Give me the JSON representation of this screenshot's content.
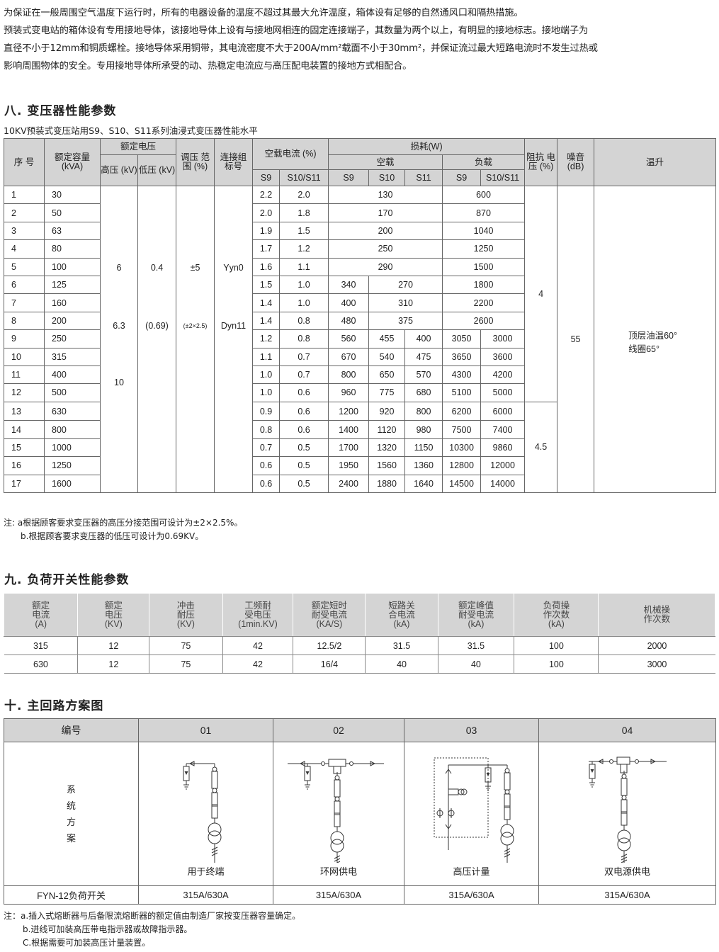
{
  "intro_lines": [
    "为保证在一般周围空气温度下运行时，所有的电器设备的温度不超过其最大允许温度，箱体设有足够的自然通风口和隔热措施。",
    "预装式变电站的箱体设有专用接地导体，该接地导体上设有与接地网相连的固定连接端子，其数量为两个以上，有明显的接地标志。接地端子为",
    "直径不小于12mm和铜质螺栓。接地导体采用铜带，其电流密度不大于200A/mm²载面不小于30mm²，并保证流过最大短路电流时不发生过热或",
    "影响周围物体的安全。专用接地导体所承受的动、热稳定电流应与高压配电装置的接地方式相配合。"
  ],
  "section8": {
    "title": "八. 变压器性能参数",
    "subtitle": "10KV预装式变压站用S9、S10、S11系列油浸式变压器性能水平",
    "headers": {
      "seq": "序 号",
      "capacity": "额定容量 (kVA)",
      "rated_voltage": "额定电压",
      "hv": "高压 (kV)",
      "lv": "低压 (kV)",
      "tap": "调压 范围 (%)",
      "vector": "连接组 标号",
      "noload_current": "空载电流 (%)",
      "loss": "损耗(W)",
      "noload": "空载",
      "load": "负载",
      "impedance": "阻抗 电压 (%)",
      "noise": "噪音 (dB)",
      "temp": "温升",
      "s9": "S9",
      "s10s11": "S10/S11",
      "s10": "S10",
      "s11": "S11"
    },
    "rows": [
      [
        "1",
        "30",
        "2.2",
        "2.0",
        "130",
        "600"
      ],
      [
        "2",
        "50",
        "2.0",
        "1.8",
        "170",
        "870"
      ],
      [
        "3",
        "63",
        "1.9",
        "1.5",
        "200",
        "1040"
      ],
      [
        "4",
        "80",
        "1.7",
        "1.2",
        "250",
        "1250"
      ],
      [
        "5",
        "100",
        "1.6",
        "1.1",
        "290",
        "1500"
      ],
      [
        "6",
        "125",
        "1.5",
        "1.0",
        "340",
        "270",
        "1800"
      ],
      [
        "7",
        "160",
        "1.4",
        "1.0",
        "400",
        "310",
        "2200"
      ],
      [
        "8",
        "200",
        "1.4",
        "0.8",
        "480",
        "375",
        "2600"
      ],
      [
        "9",
        "250",
        "1.2",
        "0.8",
        "560",
        "455",
        "400",
        "3050",
        "3000"
      ],
      [
        "10",
        "315",
        "1.1",
        "0.7",
        "670",
        "540",
        "475",
        "3650",
        "3600"
      ],
      [
        "11",
        "400",
        "1.0",
        "0.7",
        "800",
        "650",
        "570",
        "4300",
        "4200"
      ],
      [
        "12",
        "500",
        "1.0",
        "0.6",
        "960",
        "775",
        "680",
        "5100",
        "5000"
      ],
      [
        "13",
        "630",
        "0.9",
        "0.6",
        "1200",
        "920",
        "800",
        "6200",
        "6000"
      ],
      [
        "14",
        "800",
        "0.8",
        "0.6",
        "1400",
        "1120",
        "980",
        "7500",
        "7400"
      ],
      [
        "15",
        "1000",
        "0.7",
        "0.5",
        "1700",
        "1320",
        "1150",
        "10300",
        "9860"
      ],
      [
        "16",
        "1250",
        "0.6",
        "0.5",
        "1950",
        "1560",
        "1360",
        "12800",
        "12000"
      ],
      [
        "17",
        "1600",
        "0.6",
        "0.5",
        "2400",
        "1880",
        "1640",
        "14500",
        "14000"
      ]
    ],
    "hv_values": [
      "6",
      "6.3",
      "10"
    ],
    "lv_values": [
      "0.4",
      "(0.69)"
    ],
    "tap_values": [
      "±5",
      "(±2×2.5)"
    ],
    "vector_values": [
      "Yyn0",
      "Dyn11"
    ],
    "impedance_values": [
      "4",
      "4.5"
    ],
    "noise_value": "55",
    "temp_lines": [
      "顶层油温60°",
      "线圈65°"
    ],
    "notes": [
      "注: a根据顾客要求变压器的高压分接范围可设计为±2×2.5%。",
      "b.根据顾客要求变压器的低压可设计为0.69KV。"
    ]
  },
  "section9": {
    "title": "九. 负荷开关性能参数",
    "headers": [
      "额定\n电流\n(A)",
      "额定\n电压\n(KV)",
      "冲击\n耐压\n(KV)",
      "工频耐\n受电压\n(1min.KV)",
      "额定短时\n耐受电流\n(KA/S)",
      "短路关\n合电流\n(kA)",
      "额定峰值\n耐受电流\n(kA)",
      "负荷操\n作次数\n(kA)",
      "机械操\n作次数"
    ],
    "rows": [
      [
        "315",
        "12",
        "75",
        "42",
        "12.5/2",
        "31.5",
        "31.5",
        "100",
        "2000"
      ],
      [
        "630",
        "12",
        "75",
        "42",
        "16/4",
        "40",
        "40",
        "100",
        "3000"
      ]
    ]
  },
  "section10": {
    "title": "十. 主回路方案图",
    "header_label": "编号",
    "numbers": [
      "01",
      "02",
      "03",
      "04"
    ],
    "row_label": [
      "系",
      "统",
      "方",
      "案"
    ],
    "captions": [
      "用于终端",
      "环网供电",
      "高压计量",
      "双电源供电"
    ],
    "foot_label": "FYN-12负荷开关",
    "foot_values": [
      "315A/630A",
      "315A/630A",
      "315A/630A",
      "315A/630A"
    ],
    "notes": [
      "注：a.插入式熔断器与后备限流熔断器的额定值由制造厂家按变压器容量确定。",
      "b.进线可加装高压带电指示器或故障指示器。",
      "C.根据需要可加装高压计量装置。"
    ]
  },
  "colors": {
    "header_bg": "#d4d4d4",
    "border": "#666666",
    "text": "#222222"
  }
}
